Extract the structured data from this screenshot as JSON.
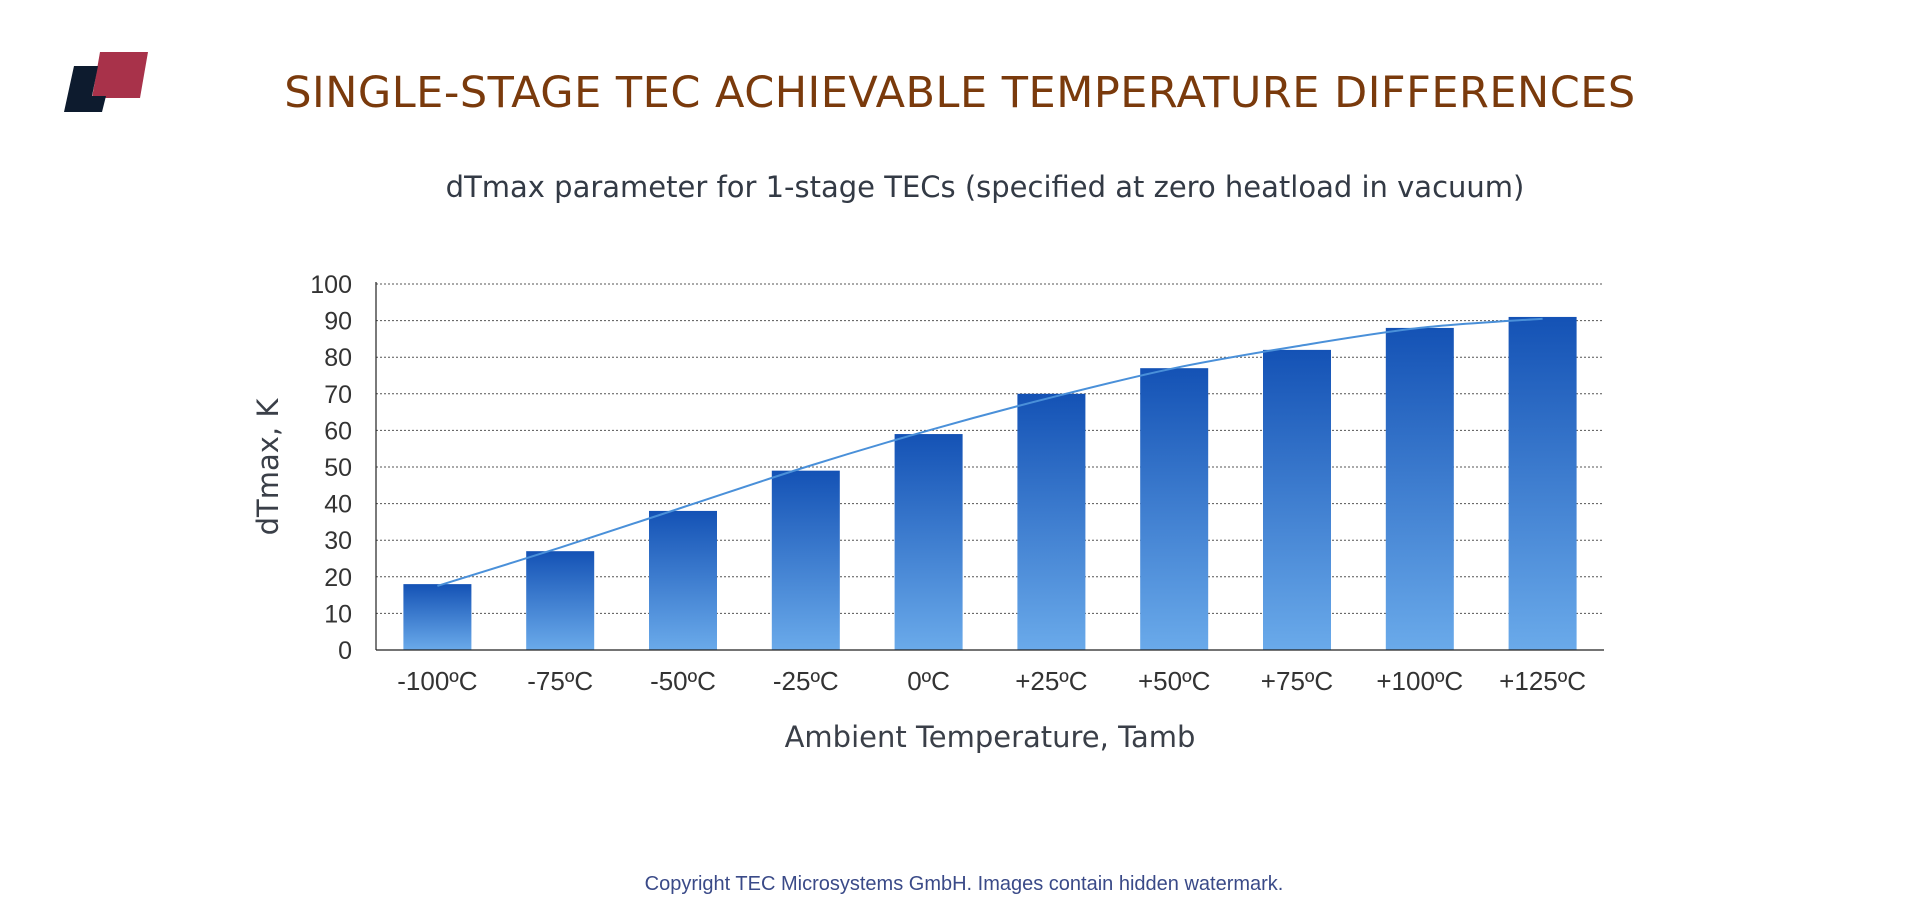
{
  "page": {
    "title": "SINGLE-STAGE TEC ACHIEVABLE TEMPERATURE DIFFERENCES",
    "footer": "Copyright TEC Microsystems GmbH. Images contain hidden watermark."
  },
  "colors": {
    "title": "#7a3a0c",
    "bar_top": "#1452b5",
    "bar_bottom": "#6aaaea",
    "trend_line": "#4a90d9",
    "logo_dark": "#0d1b2e",
    "logo_red": "#a8324a"
  },
  "chart_data": {
    "type": "bar",
    "title": "dTmax parameter for 1-stage TECs (specified at zero heatload in vacuum)",
    "xlabel": "Ambient Temperature, Tamb",
    "ylabel": "dTmax, K",
    "categories": [
      "-100ºC",
      "-75ºC",
      "-50ºC",
      "-25ºC",
      "0ºC",
      "+25ºC",
      "+50ºC",
      "+75ºC",
      "+100ºC",
      "+125ºC"
    ],
    "values": [
      18,
      27,
      38,
      49,
      59,
      70,
      77,
      82,
      88,
      91
    ],
    "trend": [
      17.5,
      28,
      39,
      50,
      60,
      69,
      77,
      83,
      88,
      90.5
    ],
    "ylim": [
      0,
      100
    ],
    "yticks": [
      0,
      10,
      20,
      30,
      40,
      50,
      60,
      70,
      80,
      90,
      100
    ],
    "grid": true
  }
}
